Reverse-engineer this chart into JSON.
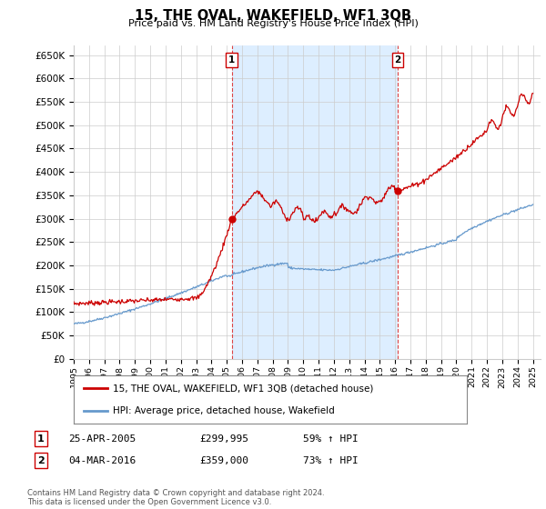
{
  "title": "15, THE OVAL, WAKEFIELD, WF1 3QB",
  "subtitle": "Price paid vs. HM Land Registry's House Price Index (HPI)",
  "ylabel_ticks": [
    "£0",
    "£50K",
    "£100K",
    "£150K",
    "£200K",
    "£250K",
    "£300K",
    "£350K",
    "£400K",
    "£450K",
    "£500K",
    "£550K",
    "£600K",
    "£650K"
  ],
  "ytick_values": [
    0,
    50000,
    100000,
    150000,
    200000,
    250000,
    300000,
    350000,
    400000,
    450000,
    500000,
    550000,
    600000,
    650000
  ],
  "ylim": [
    0,
    670000
  ],
  "xlim_start": 1995.0,
  "xlim_end": 2025.5,
  "marker1_x": 2005.32,
  "marker1_y": 299995,
  "marker2_x": 2016.17,
  "marker2_y": 359000,
  "vline1_x": 2005.32,
  "vline2_x": 2016.17,
  "bg_color": "#ffffff",
  "grid_color": "#cccccc",
  "red_line_color": "#cc0000",
  "blue_line_color": "#6699cc",
  "vline_color": "#dd4444",
  "shade_color": "#ddeeff",
  "legend_label_red": "15, THE OVAL, WAKEFIELD, WF1 3QB (detached house)",
  "legend_label_blue": "HPI: Average price, detached house, Wakefield",
  "annotation1_label": "1",
  "annotation1_date": "25-APR-2005",
  "annotation1_price": "£299,995",
  "annotation1_hpi": "59% ↑ HPI",
  "annotation2_label": "2",
  "annotation2_date": "04-MAR-2016",
  "annotation2_price": "£359,000",
  "annotation2_hpi": "73% ↑ HPI",
  "footer": "Contains HM Land Registry data © Crown copyright and database right 2024.\nThis data is licensed under the Open Government Licence v3.0.",
  "xtick_years": [
    1995,
    1996,
    1997,
    1998,
    1999,
    2000,
    2001,
    2002,
    2003,
    2004,
    2005,
    2006,
    2007,
    2008,
    2009,
    2010,
    2011,
    2012,
    2013,
    2014,
    2015,
    2016,
    2017,
    2018,
    2019,
    2020,
    2021,
    2022,
    2023,
    2024,
    2025
  ]
}
